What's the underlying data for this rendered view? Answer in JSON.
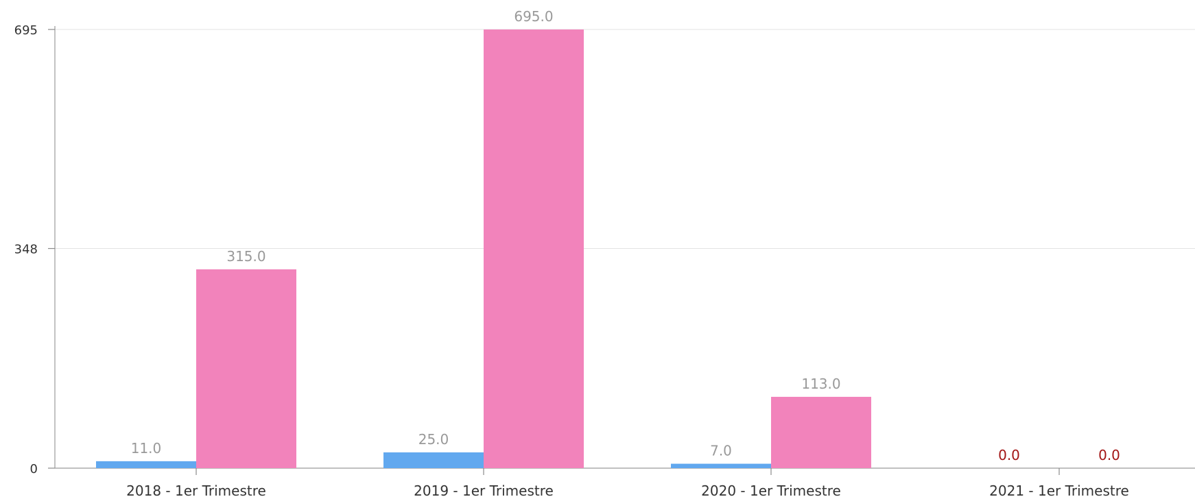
{
  "chart_data": {
    "type": "bar",
    "categories": [
      "2018 - 1er Trimestre",
      "2019 - 1er Trimestre",
      "2020 - 1er Trimestre",
      "2021 - 1er Trimestre"
    ],
    "series": [
      {
        "color": "#61a8ef",
        "values": [
          11.0,
          25.0,
          7.0,
          0.0
        ],
        "labels": [
          "11.0",
          "25.0",
          "7.0",
          "0.0"
        ]
      },
      {
        "color": "#f283bb",
        "values": [
          315.0,
          695.0,
          113.0,
          0.0
        ],
        "labels": [
          "315.0",
          "695.0",
          "113.0",
          "0.0"
        ]
      }
    ],
    "yticks": [
      0,
      348,
      695
    ],
    "ytick_labels": [
      "0",
      "348",
      "695"
    ],
    "ylim": [
      0,
      695
    ],
    "grid": true,
    "label_color": "#999999",
    "zero_label_color": "#a31515"
  }
}
